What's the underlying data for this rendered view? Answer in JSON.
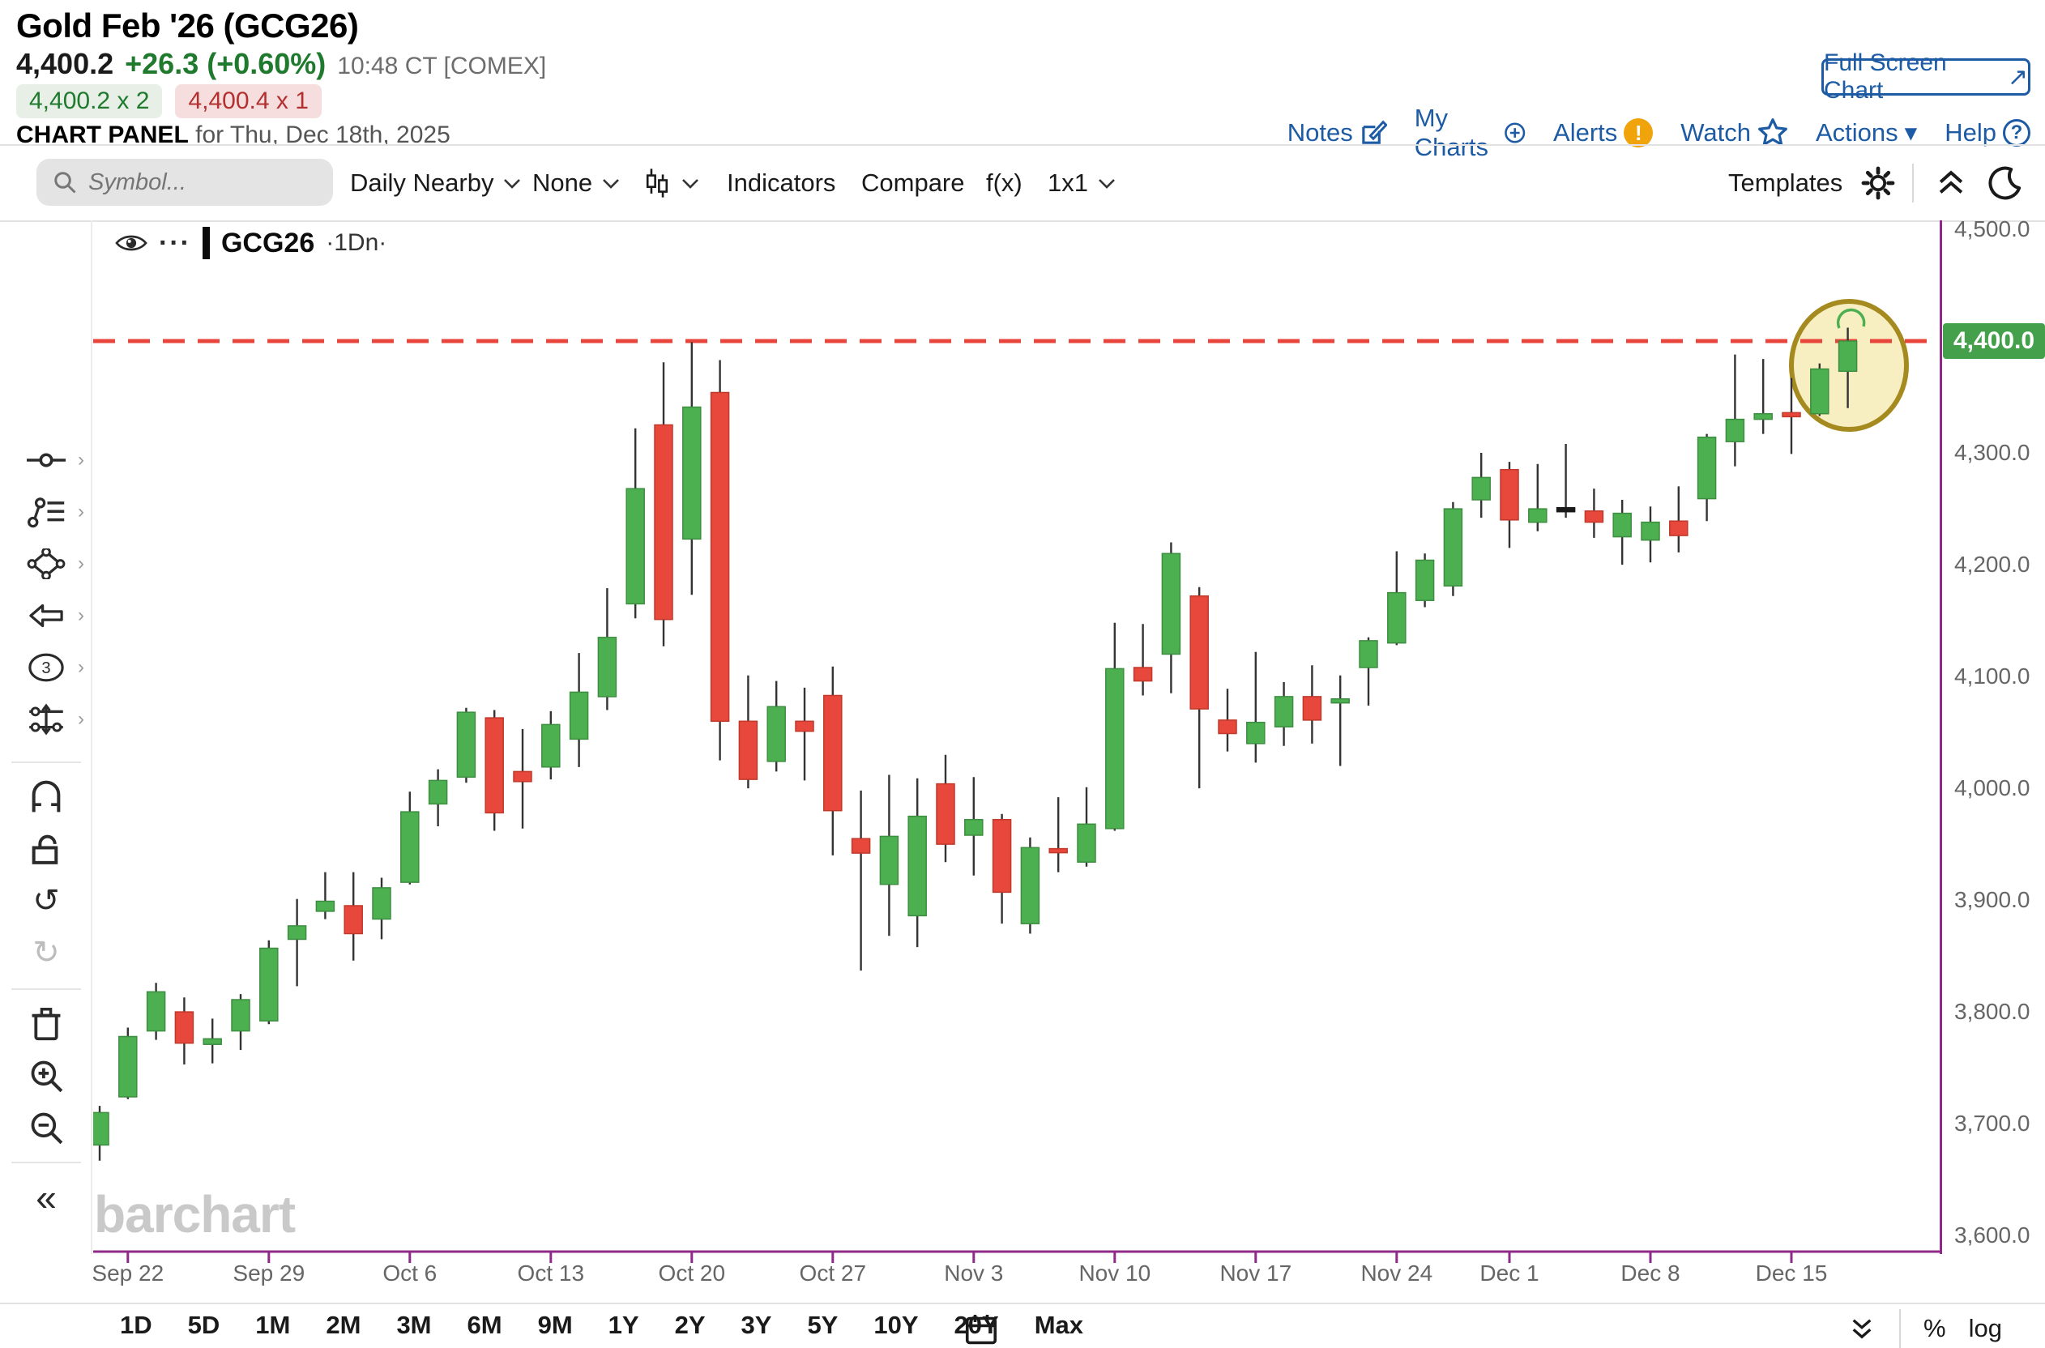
{
  "header": {
    "title": "Gold Feb '26 (GCG26)",
    "last_price": "4,400.2",
    "change": "+26.3 (+0.60%)",
    "quote_time": "10:48 CT [COMEX]",
    "bid": "4,400.2 x 2",
    "ask": "4,400.4 x 1",
    "panel_label": "CHART PANEL",
    "panel_date": " for Thu, Dec 18th, 2025",
    "full_screen_button": "Full Screen Chart",
    "full_screen_arrow": "↗",
    "links": [
      "Notes",
      "My Charts",
      "Alerts",
      "Watch",
      "Actions",
      "Help"
    ],
    "alert_glyph": "!",
    "help_glyph": "?",
    "actions_caret": "▾"
  },
  "toolbar": {
    "symbol_placeholder": "Symbol...",
    "frequency": "Daily Nearby",
    "tools": "None",
    "indicators": "Indicators",
    "compare": "Compare",
    "fx": "f(x)",
    "layout": "1x1",
    "templates": "Templates"
  },
  "rail": {
    "undo_glyph": "↺",
    "redo_glyph": "↻",
    "collapse_glyph": "«",
    "annotation_count": "3"
  },
  "chart": {
    "symbol": "GCG26",
    "frequency_badge": "·1Dn·",
    "menu_dots": "···",
    "watermark": "barchart"
  },
  "chart_data": {
    "type": "candlestick",
    "title": "Gold Feb '26 (GCG26) Daily Nearby candlestick chart",
    "ylim": [
      3600,
      4512
    ],
    "grid": false,
    "dashed_line_price": 4400,
    "last_price_label": "4,400.0",
    "y_ticks": [
      {
        "label": "4,500.0",
        "price": 4500
      },
      {
        "label": "4,400.0",
        "price": 4400
      },
      {
        "label": "4,300.0",
        "price": 4300
      },
      {
        "label": "4,200.0",
        "price": 4200
      },
      {
        "label": "4,100.0",
        "price": 4100
      },
      {
        "label": "4,000.0",
        "price": 4000
      },
      {
        "label": "3,900.0",
        "price": 3900
      },
      {
        "label": "3,800.0",
        "price": 3800
      },
      {
        "label": "3,700.0",
        "price": 3700
      },
      {
        "label": "3,600.0",
        "price": 3600
      }
    ],
    "x_labels": [
      {
        "label": "Sep 22",
        "i": 1
      },
      {
        "label": "Sep 29",
        "i": 6
      },
      {
        "label": "Oct 6",
        "i": 11
      },
      {
        "label": "Oct 13",
        "i": 16
      },
      {
        "label": "Oct 20",
        "i": 21
      },
      {
        "label": "Oct 27",
        "i": 26
      },
      {
        "label": "Nov 3",
        "i": 31
      },
      {
        "label": "Nov 10",
        "i": 36
      },
      {
        "label": "Nov 17",
        "i": 41
      },
      {
        "label": "Nov 24",
        "i": 46
      },
      {
        "label": "Dec 1",
        "i": 50
      },
      {
        "label": "Dec 8",
        "i": 55
      },
      {
        "label": "Dec 15",
        "i": 60
      }
    ],
    "candles": [
      [
        3681,
        3716,
        3667,
        3710
      ],
      [
        3724,
        3786,
        3722,
        3778
      ],
      [
        3783,
        3826,
        3775,
        3818
      ],
      [
        3800,
        3813,
        3753,
        3772
      ],
      [
        3771,
        3794,
        3754,
        3776
      ],
      [
        3783,
        3816,
        3766,
        3811
      ],
      [
        3792,
        3864,
        3789,
        3857
      ],
      [
        3865,
        3901,
        3823,
        3877
      ],
      [
        3890,
        3925,
        3883,
        3899
      ],
      [
        3895,
        3925,
        3846,
        3870
      ],
      [
        3883,
        3920,
        3865,
        3911
      ],
      [
        3916,
        3997,
        3914,
        3979
      ],
      [
        3986,
        4017,
        3966,
        4007
      ],
      [
        4010,
        4072,
        4005,
        4068
      ],
      [
        4063,
        4070,
        3962,
        3978
      ],
      [
        4015,
        4053,
        3964,
        4006
      ],
      [
        4019,
        4069,
        4008,
        4057
      ],
      [
        4044,
        4121,
        4019,
        4086
      ],
      [
        4082,
        4179,
        4070,
        4135
      ],
      [
        4165,
        4322,
        4152,
        4268
      ],
      [
        4325,
        4381,
        4127,
        4151
      ],
      [
        4223,
        4399,
        4173,
        4341
      ],
      [
        4354,
        4383,
        4025,
        4060
      ],
      [
        4060,
        4101,
        4000,
        4008
      ],
      [
        4024,
        4096,
        4015,
        4073
      ],
      [
        4060,
        4090,
        4007,
        4051
      ],
      [
        4083,
        4109,
        3940,
        3980
      ],
      [
        3955,
        3998,
        3837,
        3942
      ],
      [
        3914,
        4012,
        3868,
        3957
      ],
      [
        3886,
        4009,
        3858,
        3975
      ],
      [
        4004,
        4030,
        3934,
        3950
      ],
      [
        3958,
        4010,
        3922,
        3972
      ],
      [
        3972,
        3977,
        3879,
        3907
      ],
      [
        3879,
        3956,
        3870,
        3947
      ],
      [
        3946,
        3992,
        3925,
        3944
      ],
      [
        3934,
        4001,
        3930,
        3968
      ],
      [
        3964,
        4148,
        3962,
        4107
      ],
      [
        4108,
        4147,
        4083,
        4096
      ],
      [
        4120,
        4220,
        4085,
        4210
      ],
      [
        4172,
        4180,
        4000,
        4071
      ],
      [
        4061,
        4089,
        4033,
        4049
      ],
      [
        4040,
        4122,
        4023,
        4059
      ],
      [
        4055,
        4095,
        4038,
        4082
      ],
      [
        4082,
        4110,
        4040,
        4061
      ],
      [
        4079,
        4101,
        4020,
        4080
      ],
      [
        4108,
        4135,
        4074,
        4132
      ],
      [
        4130,
        4212,
        4128,
        4175
      ],
      [
        4168,
        4210,
        4162,
        4204
      ],
      [
        4181,
        4256,
        4172,
        4250
      ],
      [
        4258,
        4300,
        4242,
        4278
      ],
      [
        4285,
        4292,
        4215,
        4240
      ],
      [
        4238,
        4290,
        4230,
        4250
      ],
      [
        4250,
        4308,
        4242,
        4251
      ],
      [
        4248,
        4268,
        4224,
        4238
      ],
      [
        4225,
        4258,
        4200,
        4246
      ],
      [
        4222,
        4252,
        4202,
        4238
      ],
      [
        4239,
        4270,
        4211,
        4226
      ],
      [
        4259,
        4317,
        4239,
        4314
      ],
      [
        4310,
        4388,
        4288,
        4330
      ],
      [
        4330,
        4384,
        4317,
        4335
      ],
      [
        4336,
        4367,
        4299,
        4333
      ],
      [
        4335,
        4380,
        4333,
        4375
      ],
      [
        4373,
        4412,
        4340,
        4400
      ]
    ],
    "black_dash_indices": [
      52
    ],
    "annotations": {
      "ellipse": {
        "cx": 2167,
        "cy": 179,
        "rx": 71,
        "ry": 79,
        "fill": "rgba(242,230,160,0.65)",
        "stroke": "#a58a1f"
      },
      "arc": {
        "cx": 2171,
        "cy": 124,
        "stroke": "#4caf50"
      }
    },
    "colors": {
      "up": "#4caf50",
      "up_border": "#3e8e41",
      "down": "#e8483c",
      "down_border": "#c0392b",
      "line": "#e8453c",
      "axis": "#8f2a8a",
      "badge": "#44a04a",
      "wick": "#333333"
    }
  },
  "bottom_bar": {
    "ranges": [
      "1D",
      "5D",
      "1M",
      "2M",
      "3M",
      "6M",
      "9M",
      "1Y",
      "2Y",
      "3Y",
      "5Y",
      "10Y",
      "20Y",
      "Max"
    ],
    "percent": "%",
    "log": "log"
  }
}
